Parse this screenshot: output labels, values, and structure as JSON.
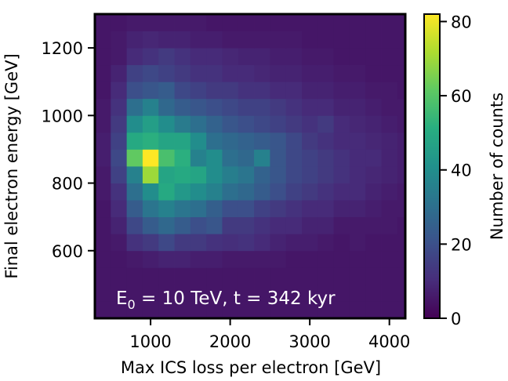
{
  "chart_data": {
    "type": "heatmap",
    "xlabel": "Max ICS loss per electron [GeV]",
    "ylabel": "Final electron energy [GeV]",
    "xlim": [
      300,
      4200
    ],
    "ylim": [
      400,
      1300
    ],
    "x_ticks": [
      1000,
      2000,
      3000,
      4000
    ],
    "x_tick_labels": [
      "1000",
      "2000",
      "3000",
      "4000"
    ],
    "y_ticks": [
      600,
      800,
      1000,
      1200
    ],
    "y_tick_labels": [
      "600",
      "800",
      "1000",
      "1200"
    ],
    "annotation_main": "E",
    "annotation_sub": "0",
    "annotation_rest": " = 10 TeV, t = 342 kyr",
    "colorbar": {
      "label": "Number of counts",
      "range": [
        0,
        82
      ],
      "ticks": [
        0,
        20,
        40,
        60,
        80
      ],
      "tick_labels": [
        "0",
        "20",
        "40",
        "60",
        "80"
      ],
      "colormap": "viridis"
    },
    "grid": {
      "x_edges": [
        300,
        500,
        700,
        900,
        1100,
        1300,
        1500,
        1700,
        1900,
        2100,
        2300,
        2500,
        2700,
        2900,
        3100,
        3300,
        3500,
        3700,
        3900,
        4100,
        4200
      ],
      "y_edges": [
        400,
        450,
        500,
        550,
        600,
        650,
        700,
        750,
        800,
        850,
        900,
        950,
        1000,
        1050,
        1100,
        1150,
        1200,
        1250,
        1300
      ],
      "counts": [
        [
          5,
          5,
          5,
          5,
          5,
          5,
          5,
          5,
          5,
          5,
          5,
          5,
          5,
          5,
          5,
          5,
          5,
          5,
          5,
          5
        ],
        [
          5,
          5,
          5,
          5,
          5,
          5,
          5,
          5,
          5,
          5,
          5,
          5,
          5,
          5,
          5,
          5,
          5,
          5,
          5,
          5
        ],
        [
          5,
          5,
          5,
          5,
          5,
          5,
          5,
          5,
          5,
          5,
          5,
          5,
          5,
          5,
          5,
          5,
          5,
          5,
          5,
          5
        ],
        [
          5,
          5,
          6,
          7,
          8,
          8,
          7,
          7,
          6,
          6,
          6,
          6,
          5,
          5,
          5,
          5,
          5,
          5,
          5,
          5
        ],
        [
          5,
          6,
          12,
          14,
          18,
          14,
          14,
          12,
          11,
          12,
          10,
          8,
          7,
          7,
          6,
          5,
          6,
          5,
          5,
          5
        ],
        [
          5,
          8,
          18,
          24,
          28,
          24,
          20,
          22,
          14,
          14,
          12,
          10,
          10,
          8,
          8,
          6,
          6,
          6,
          6,
          5
        ],
        [
          5,
          10,
          24,
          32,
          36,
          32,
          30,
          25,
          20,
          20,
          16,
          14,
          12,
          10,
          10,
          8,
          8,
          7,
          6,
          6
        ],
        [
          6,
          12,
          30,
          40,
          50,
          44,
          40,
          36,
          30,
          28,
          24,
          20,
          16,
          14,
          12,
          10,
          10,
          8,
          7,
          6
        ],
        [
          6,
          16,
          36,
          70,
          48,
          50,
          48,
          40,
          35,
          32,
          26,
          22,
          18,
          16,
          14,
          12,
          10,
          9,
          8,
          7
        ],
        [
          7,
          18,
          62,
          82,
          58,
          52,
          36,
          40,
          30,
          28,
          36,
          22,
          18,
          16,
          14,
          12,
          10,
          10,
          8,
          7
        ],
        [
          7,
          16,
          50,
          52,
          48,
          48,
          40,
          30,
          28,
          26,
          24,
          22,
          18,
          14,
          12,
          10,
          10,
          9,
          8,
          7
        ],
        [
          6,
          14,
          40,
          46,
          40,
          34,
          30,
          26,
          22,
          20,
          18,
          16,
          14,
          12,
          14,
          10,
          9,
          8,
          7,
          6
        ],
        [
          6,
          12,
          30,
          36,
          28,
          24,
          22,
          20,
          18,
          16,
          16,
          14,
          12,
          10,
          10,
          8,
          8,
          7,
          6,
          6
        ],
        [
          5,
          10,
          20,
          22,
          24,
          18,
          16,
          14,
          14,
          12,
          12,
          10,
          10,
          8,
          8,
          7,
          7,
          6,
          6,
          5
        ],
        [
          5,
          8,
          16,
          18,
          16,
          14,
          12,
          12,
          10,
          10,
          9,
          8,
          8,
          7,
          7,
          6,
          6,
          5,
          5,
          5
        ],
        [
          5,
          6,
          10,
          12,
          14,
          12,
          10,
          10,
          9,
          8,
          8,
          7,
          7,
          6,
          6,
          5,
          5,
          5,
          5,
          5
        ],
        [
          5,
          6,
          8,
          9,
          8,
          8,
          7,
          7,
          6,
          6,
          6,
          6,
          6,
          5,
          5,
          5,
          5,
          5,
          5,
          5
        ],
        [
          5,
          5,
          6,
          6,
          6,
          6,
          6,
          5,
          5,
          5,
          5,
          5,
          5,
          5,
          5,
          5,
          5,
          5,
          5,
          5
        ]
      ]
    }
  }
}
